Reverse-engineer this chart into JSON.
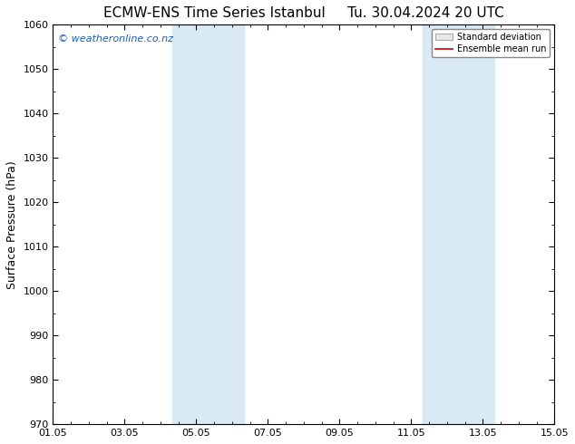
{
  "title_left": "ECMW-ENS Time Series Istanbul",
  "title_right": "Tu. 30.04.2024 20 UTC",
  "ylabel": "Surface Pressure (hPa)",
  "ylim": [
    970,
    1060
  ],
  "yticks": [
    970,
    980,
    990,
    1000,
    1010,
    1020,
    1030,
    1040,
    1050,
    1060
  ],
  "xlim_start": 0,
  "xlim_end": 14,
  "xtick_labels": [
    "01.05",
    "03.05",
    "05.05",
    "07.05",
    "09.05",
    "11.05",
    "13.05",
    "15.05"
  ],
  "xtick_positions": [
    0,
    2,
    4,
    6,
    8,
    10,
    12,
    14
  ],
  "shaded_regions": [
    {
      "xmin": 3.333,
      "xmax": 4.0
    },
    {
      "xmin": 4.0,
      "xmax": 5.333
    },
    {
      "xmin": 10.333,
      "xmax": 11.0
    },
    {
      "xmin": 11.0,
      "xmax": 12.333
    }
  ],
  "shade_color": "#daeaf5",
  "background_color": "#ffffff",
  "watermark_text": "© weatheronline.co.nz",
  "watermark_color": "#1a5fb4",
  "legend_std_label": "Standard deviation",
  "legend_mean_label": "Ensemble mean run",
  "legend_std_facecolor": "#e8e8e8",
  "legend_std_edgecolor": "#aaaaaa",
  "legend_mean_color": "#cc0000",
  "title_fontsize": 11,
  "ylabel_fontsize": 9,
  "tick_fontsize": 8,
  "watermark_fontsize": 8,
  "spine_color": "#000000",
  "tick_color": "#000000"
}
